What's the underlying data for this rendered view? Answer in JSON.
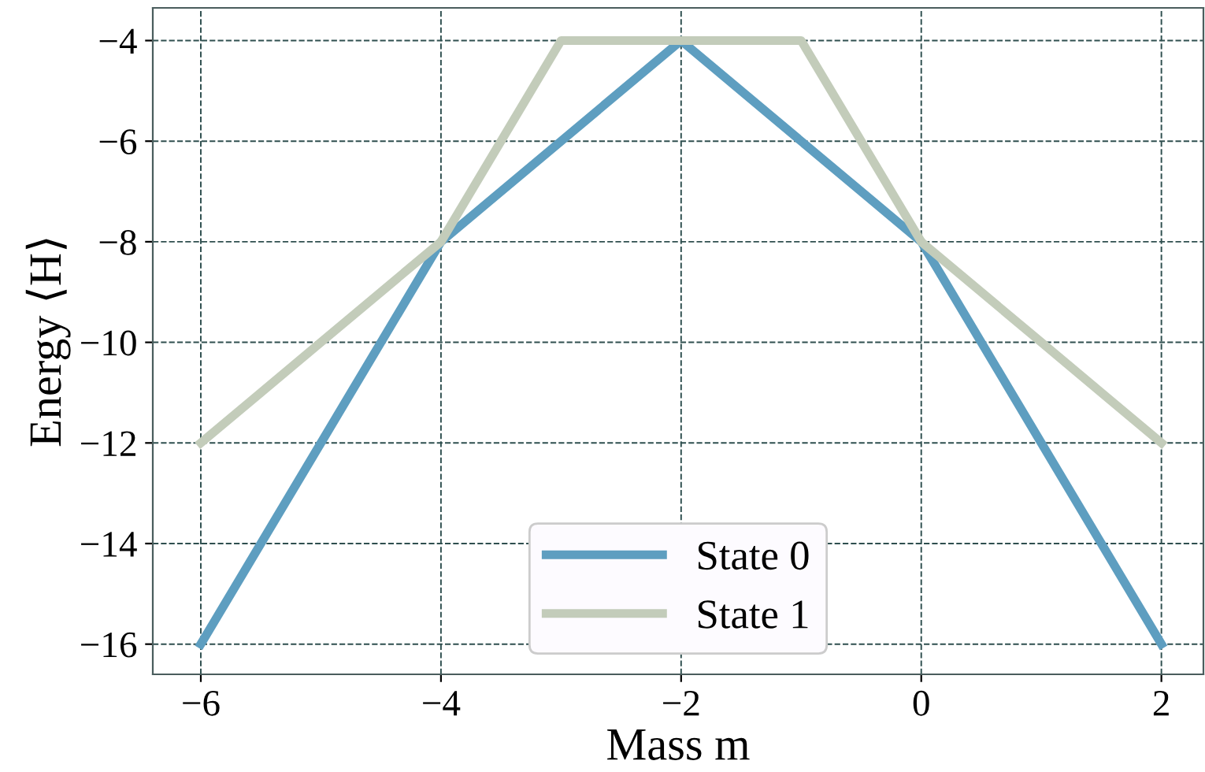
{
  "chart_data": {
    "type": "line",
    "xlabel": "Mass m",
    "ylabel": "Energy ⟨H⟩",
    "x": [
      -6,
      -5,
      -4,
      -3,
      -2,
      -1,
      0,
      1,
      2
    ],
    "series": [
      {
        "name": "State 0",
        "color": "#5e9ec0",
        "values": [
          -16,
          -12,
          -8,
          -6,
          -4,
          -6,
          -8,
          -12,
          -16
        ]
      },
      {
        "name": "State 1",
        "color": "#c3ccba",
        "values": [
          -12,
          -10,
          -8,
          -4,
          -4,
          -4,
          -8,
          -10,
          -12
        ]
      }
    ],
    "xlim": [
      -6.4,
      2.35
    ],
    "xticks": [
      {
        "value": -6,
        "label": "−6"
      },
      {
        "value": -4,
        "label": "−4"
      },
      {
        "value": -2,
        "label": "−2"
      },
      0,
      2
    ],
    "ylim": [
      -16.6,
      -3.35
    ],
    "yticks": [
      {
        "value": -16,
        "label": "−16"
      },
      {
        "value": -14,
        "label": "−14"
      },
      {
        "value": -12,
        "label": "−12"
      },
      {
        "value": -10,
        "label": "−10"
      },
      {
        "value": -8,
        "label": "−8"
      },
      {
        "value": -6,
        "label": "−6"
      },
      {
        "value": -4,
        "label": "−4"
      }
    ],
    "grid": true,
    "legend": "bottom",
    "marker": "none",
    "line_style": "solid"
  }
}
